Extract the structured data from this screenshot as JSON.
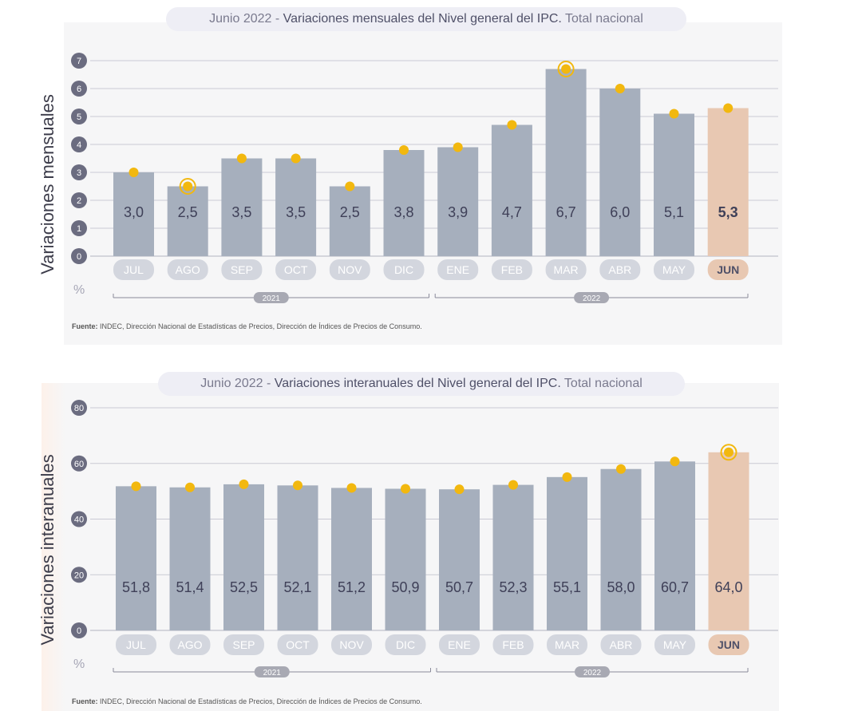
{
  "source_prefix": "Fuente:",
  "source_text": "INDEC, Dirección Nacional de Estadísticas de Precios, Dirección de Índices de Precios de Consumo.",
  "year_labels": [
    "2021",
    "2022"
  ],
  "percent_symbol": "%",
  "colors": {
    "bar": "#a6afbd",
    "bar_highlight": "#e8c8b2",
    "marker": "#f2b80f",
    "tick_circle": "#6b6c80",
    "grid": "#c9cad4",
    "value_text": "#3f4058"
  },
  "chart_data": [
    {
      "type": "bar",
      "title_prefix": "Junio 2022 - ",
      "title_main": "Variaciones mensuales del Nivel general del IPC.",
      "title_suffix": " Total nacional",
      "ylabel": "Variaciones mensuales",
      "categories": [
        "JUL",
        "AGO",
        "SEP",
        "OCT",
        "NOV",
        "DIC",
        "ENE",
        "FEB",
        "MAR",
        "ABR",
        "MAY",
        "JUN"
      ],
      "values": [
        3.0,
        2.5,
        3.5,
        3.5,
        2.5,
        3.8,
        3.9,
        4.7,
        6.7,
        6.0,
        5.1,
        5.3
      ],
      "value_labels": [
        "3,0",
        "2,5",
        "3,5",
        "3,5",
        "2,5",
        "3,8",
        "3,9",
        "4,7",
        "6,7",
        "6,0",
        "5,1",
        "5,3"
      ],
      "highlight_index": 11,
      "ring_markers": [
        1,
        8
      ],
      "y_ticks": [
        "0",
        "1",
        "2",
        "3",
        "4",
        "5",
        "6",
        "7"
      ],
      "ylim": [
        0,
        7
      ],
      "years": [
        {
          "label": "2021",
          "from": 0,
          "to": 5
        },
        {
          "label": "2022",
          "from": 6,
          "to": 11
        }
      ]
    },
    {
      "type": "bar",
      "title_prefix": "Junio 2022 - ",
      "title_main": "Variaciones interanuales del Nivel general del IPC.",
      "title_suffix": " Total nacional",
      "ylabel": "Variaciones interanuales",
      "categories": [
        "JUL",
        "AGO",
        "SEP",
        "OCT",
        "NOV",
        "DIC",
        "ENE",
        "FEB",
        "MAR",
        "ABR",
        "MAY",
        "JUN"
      ],
      "values": [
        51.8,
        51.4,
        52.5,
        52.1,
        51.2,
        50.9,
        50.7,
        52.3,
        55.1,
        58.0,
        60.7,
        64.0
      ],
      "value_labels": [
        "51,8",
        "51,4",
        "52,5",
        "52,1",
        "51,2",
        "50,9",
        "50,7",
        "52,3",
        "55,1",
        "58,0",
        "60,7",
        "64,0"
      ],
      "highlight_index": 11,
      "ring_markers": [
        11
      ],
      "y_ticks": [
        "0",
        "20",
        "40",
        "60",
        "80"
      ],
      "ylim": [
        0,
        80
      ],
      "years": [
        {
          "label": "2021",
          "from": 0,
          "to": 5
        },
        {
          "label": "2022",
          "from": 6,
          "to": 11
        }
      ]
    }
  ]
}
